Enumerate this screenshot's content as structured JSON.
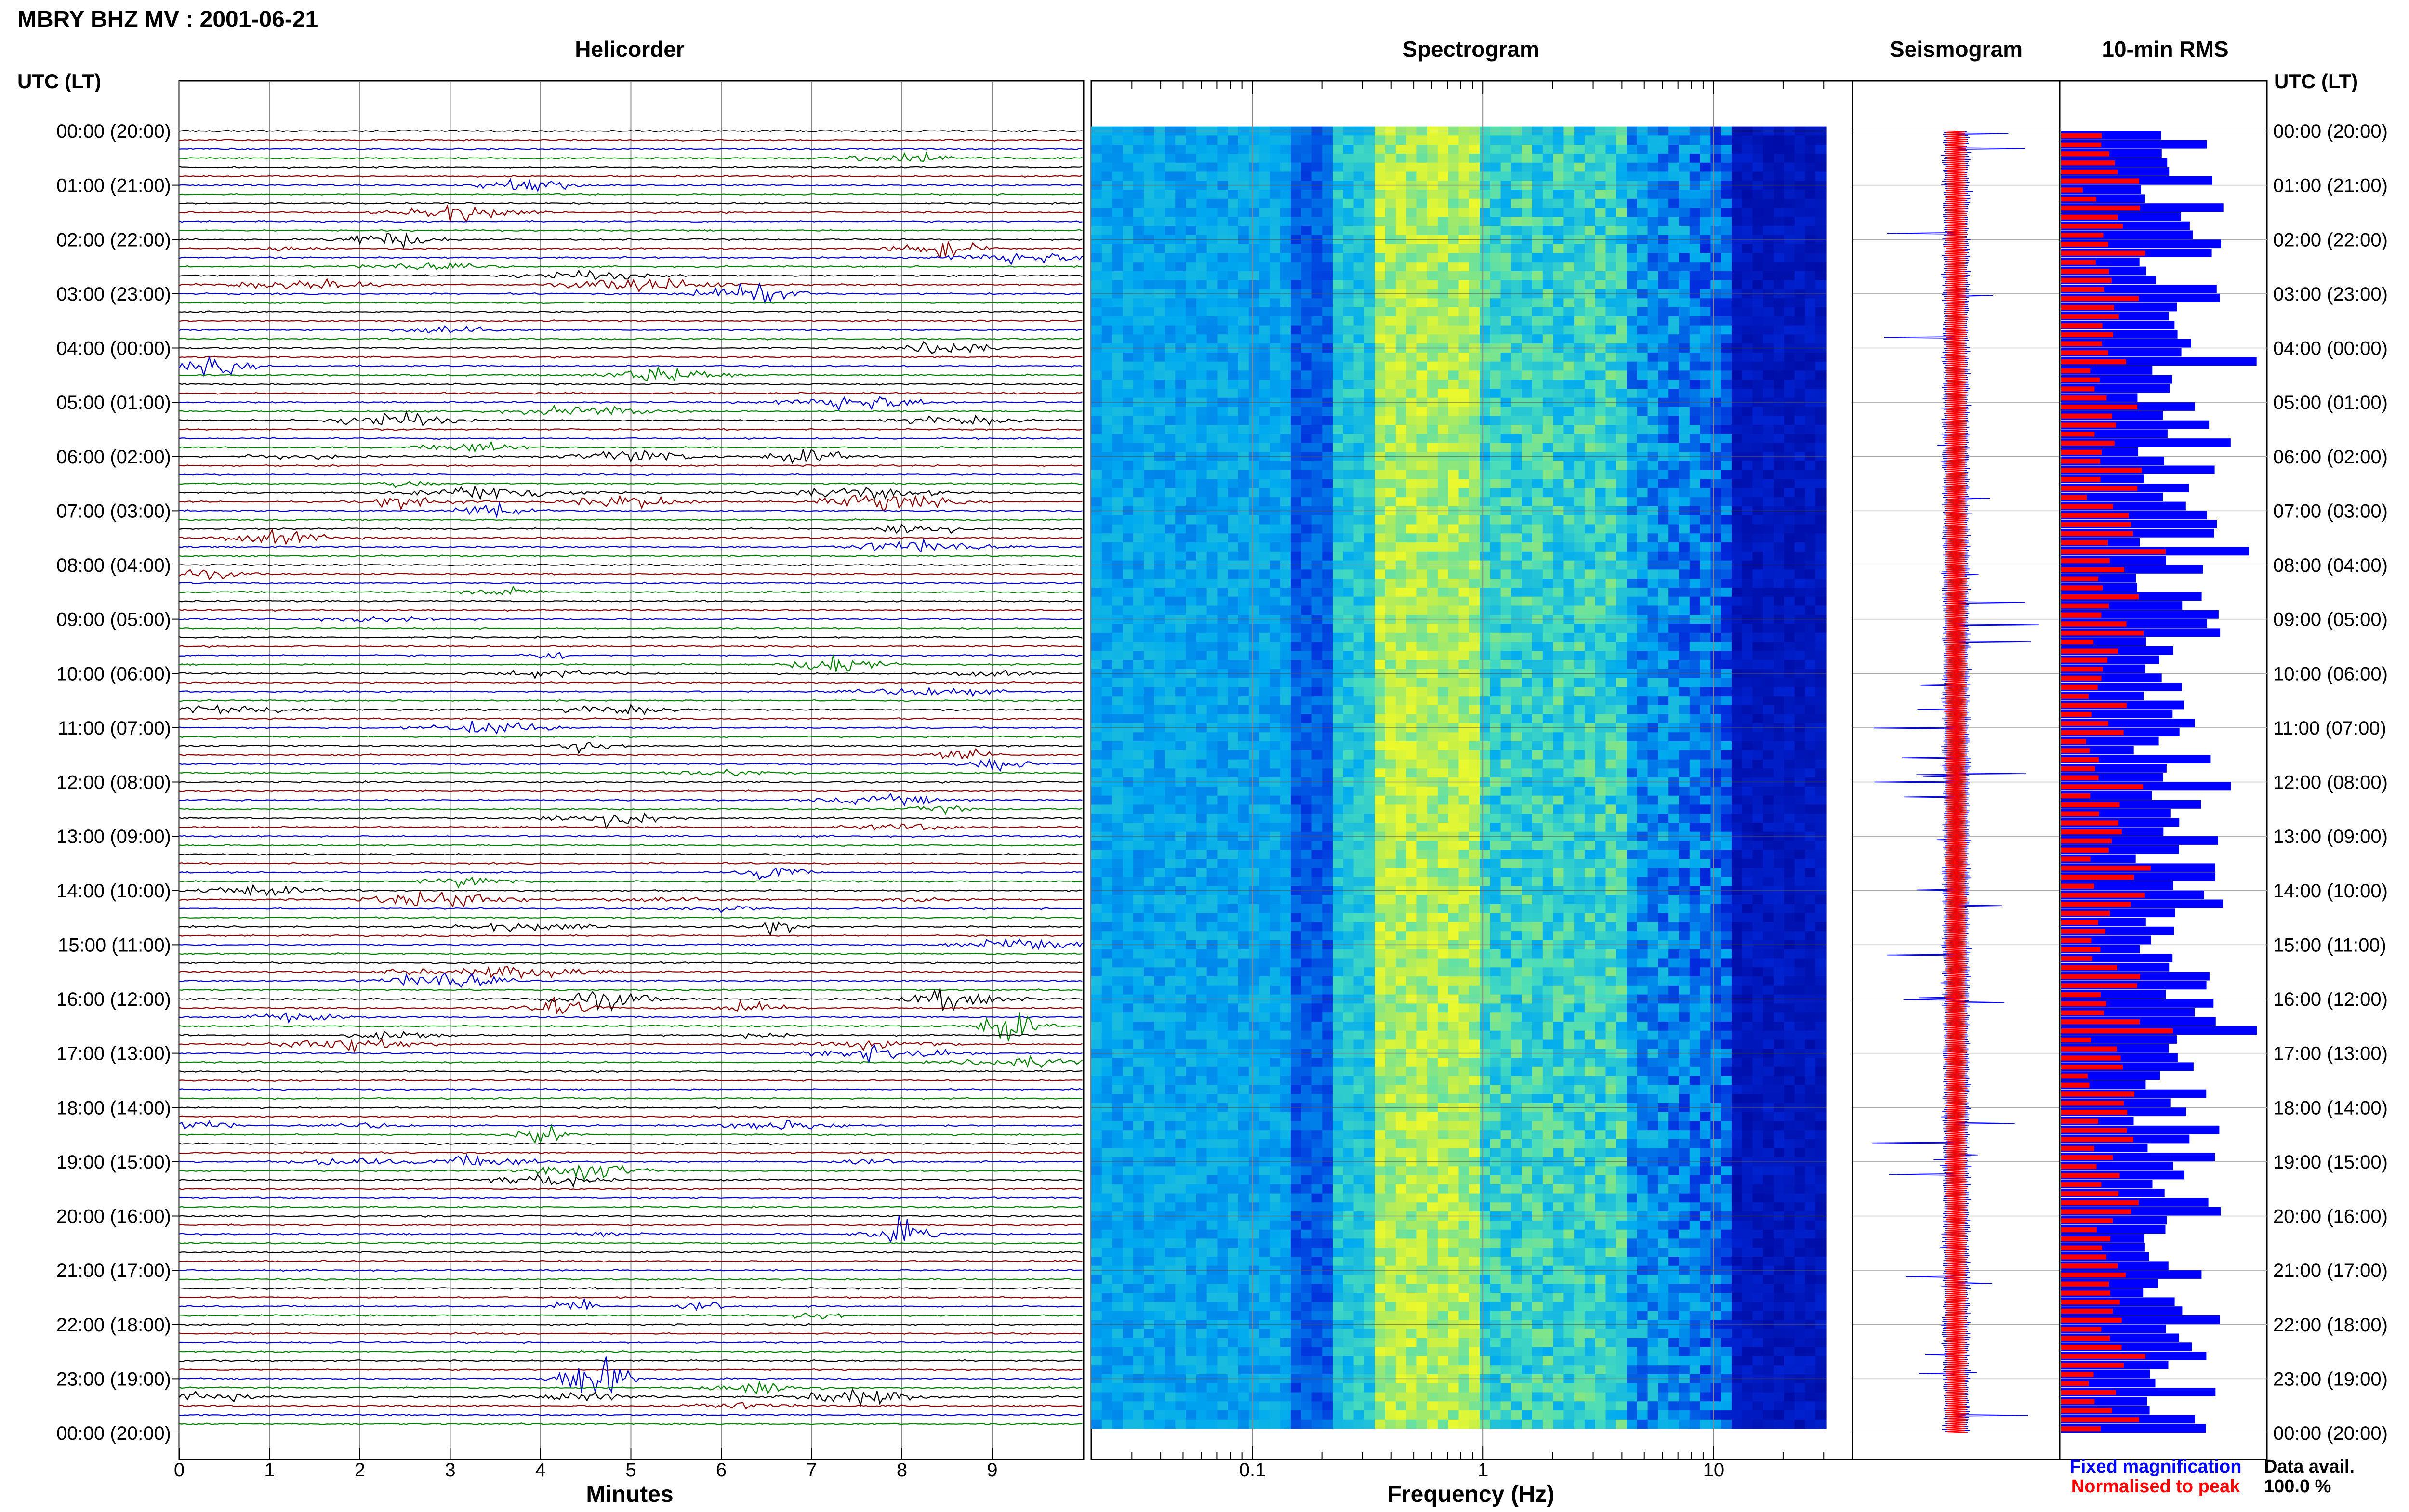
{
  "title": "MBRY BHZ MV : 2001-06-21",
  "panels": {
    "helicorder": "Helicorder",
    "spectrogram": "Spectrogram",
    "seismogram": "Seismogram",
    "rms": "10-min RMS"
  },
  "axis_labels": {
    "utc_left": "UTC (LT)",
    "utc_right": "UTC (LT)",
    "minutes": "Minutes",
    "frequency": "Frequency (Hz)"
  },
  "legend": {
    "fixed": "Fixed magnification",
    "normalised": "Normalised to peak",
    "fixed_color": "#0000ff",
    "normalised_color": "#ff0000"
  },
  "data_avail": {
    "label": "Data avail.",
    "value": "100.0 %"
  },
  "colors": {
    "trace_cycle": [
      "#000000",
      "#8b0000",
      "#0000cd",
      "#008000"
    ],
    "rms_fixed": "#0000ff",
    "rms_normalised": "#ff0000"
  },
  "chart_data": [
    {
      "type": "line",
      "name": "Helicorder",
      "x_ticks": [
        "0",
        "1",
        "2",
        "3",
        "4",
        "5",
        "6",
        "7",
        "8",
        "9"
      ],
      "xlim": [
        0,
        10
      ],
      "time_labels": [
        "00:00 (20:00)",
        "01:00 (21:00)",
        "02:00 (22:00)",
        "03:00 (23:00)",
        "04:00 (00:00)",
        "05:00 (01:00)",
        "06:00 (02:00)",
        "07:00 (03:00)",
        "08:00 (04:00)",
        "09:00 (05:00)",
        "10:00 (06:00)",
        "11:00 (07:00)",
        "12:00 (08:00)",
        "13:00 (09:00)",
        "14:00 (10:00)",
        "15:00 (11:00)",
        "16:00 (12:00)",
        "17:00 (13:00)",
        "18:00 (14:00)",
        "19:00 (15:00)",
        "20:00 (16:00)",
        "21:00 (17:00)",
        "22:00 (18:00)",
        "23:00 (19:00)",
        "00:00 (20:00)"
      ],
      "rows": 144,
      "row_minutes": 10
    },
    {
      "type": "heatmap",
      "name": "Spectrogram",
      "x_scale": "log",
      "xlim": [
        0.02,
        40
      ],
      "x_ticks": [
        "0.1",
        "1",
        "10"
      ]
    },
    {
      "type": "bar",
      "name": "10-min RMS",
      "series_colors": [
        "#0000ff",
        "#ff0000"
      ],
      "rows": 144
    }
  ]
}
